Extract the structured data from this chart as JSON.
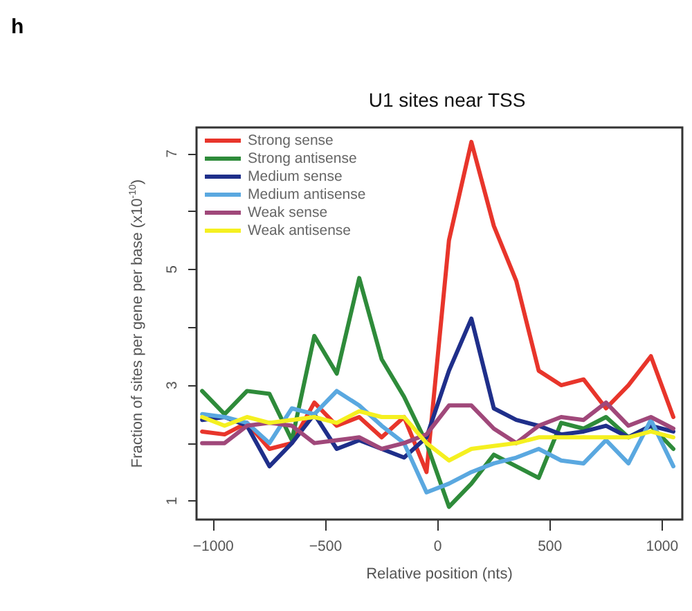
{
  "chart_data": {
    "type": "line",
    "title": "U1 sites near TSS",
    "xlabel": "Relative position (nts)",
    "ylabel": "Fraction of sites per gene per base (x10$^{-10}$)",
    "annotations": [
      "h"
    ],
    "x": [
      -1050,
      -950,
      -850,
      -750,
      -650,
      -550,
      -450,
      -350,
      -250,
      -150,
      -50,
      50,
      150,
      250,
      350,
      450,
      550,
      650,
      750,
      850,
      950,
      1050
    ],
    "series": [
      {
        "name": "Strong sense",
        "color": "#e8352b",
        "values": [
          2.2,
          2.15,
          2.35,
          1.9,
          2.0,
          2.7,
          2.3,
          2.45,
          2.1,
          2.45,
          1.5,
          5.5,
          7.2,
          5.75,
          4.8,
          3.25,
          3.0,
          3.1,
          2.6,
          3.0,
          3.5,
          2.45
        ]
      },
      {
        "name": "Strong antisense",
        "color": "#2e8b3a",
        "values": [
          2.9,
          2.5,
          2.9,
          2.85,
          2.05,
          3.85,
          3.2,
          4.85,
          3.45,
          2.8,
          2.0,
          0.9,
          1.3,
          1.8,
          1.6,
          1.4,
          2.35,
          2.25,
          2.45,
          2.1,
          2.3,
          1.9
        ]
      },
      {
        "name": "Medium sense",
        "color": "#1f2f8a",
        "values": [
          2.4,
          2.45,
          2.3,
          1.6,
          2.0,
          2.5,
          1.9,
          2.05,
          1.9,
          1.75,
          2.1,
          3.25,
          4.15,
          2.6,
          2.4,
          2.3,
          2.15,
          2.2,
          2.3,
          2.1,
          2.3,
          2.2
        ]
      },
      {
        "name": "Medium antisense",
        "color": "#5aa8e0",
        "values": [
          2.5,
          2.45,
          2.35,
          2.0,
          2.6,
          2.5,
          2.9,
          2.65,
          2.3,
          2.0,
          1.15,
          1.3,
          1.5,
          1.65,
          1.75,
          1.9,
          1.7,
          1.65,
          2.05,
          1.65,
          2.4,
          1.6
        ]
      },
      {
        "name": "Weak sense",
        "color": "#a0487a",
        "values": [
          2.0,
          2.0,
          2.3,
          2.35,
          2.3,
          2.0,
          2.05,
          2.1,
          1.9,
          2.0,
          2.15,
          2.65,
          2.65,
          2.25,
          2.0,
          2.3,
          2.45,
          2.4,
          2.7,
          2.3,
          2.45,
          2.25
        ]
      },
      {
        "name": "Weak antisense",
        "color": "#f5f020",
        "values": [
          2.45,
          2.3,
          2.45,
          2.35,
          2.4,
          2.45,
          2.35,
          2.55,
          2.45,
          2.45,
          2.0,
          1.7,
          1.9,
          1.95,
          2.0,
          2.1,
          2.1,
          2.1,
          2.1,
          2.1,
          2.2,
          2.1
        ]
      }
    ],
    "xlim": [
      -1075,
      1090
    ],
    "xticks": [
      -1000,
      -500,
      0,
      500,
      1000
    ],
    "ylim": [
      0.68,
      7.45
    ],
    "yticks": [
      1,
      {
        "value": 2,
        "label": null
      },
      3,
      {
        "value": 4,
        "label": null
      },
      5,
      {
        "value": 6,
        "label": null
      },
      7
    ],
    "legend": "top left",
    "grid": false,
    "marker": "none",
    "line_style": "solid"
  }
}
